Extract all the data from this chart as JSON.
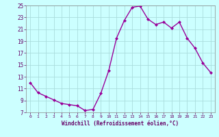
{
  "x": [
    0,
    1,
    2,
    3,
    4,
    5,
    6,
    7,
    8,
    9,
    10,
    11,
    12,
    13,
    14,
    15,
    16,
    17,
    18,
    19,
    20,
    21,
    22,
    23
  ],
  "y": [
    12.0,
    10.3,
    9.7,
    9.1,
    8.5,
    8.3,
    8.1,
    7.3,
    7.5,
    10.2,
    14.0,
    19.5,
    22.5,
    24.7,
    24.9,
    22.7,
    21.8,
    22.2,
    21.2,
    22.2,
    19.5,
    17.8,
    15.3,
    13.7
  ],
  "line_color": "#990099",
  "marker": "D",
  "marker_size": 2.0,
  "bg_color": "#ccffff",
  "grid_color": "#aadddd",
  "xlabel": "Windchill (Refroidissement éolien,°C)",
  "xlabel_color": "#660066",
  "tick_color": "#660066",
  "ylim": [
    7,
    25
  ],
  "yticks": [
    7,
    9,
    11,
    13,
    15,
    17,
    19,
    21,
    23,
    25
  ],
  "xticks": [
    0,
    1,
    2,
    3,
    4,
    5,
    6,
    7,
    8,
    9,
    10,
    11,
    12,
    13,
    14,
    15,
    16,
    17,
    18,
    19,
    20,
    21,
    22,
    23
  ],
  "line_width": 1.0,
  "spine_color": "#888888"
}
